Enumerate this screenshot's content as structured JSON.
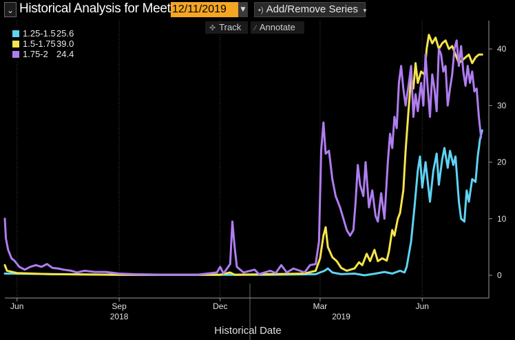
{
  "header": {
    "title": "Historical Analysis for Meeting",
    "date_value": "12/11/2019",
    "add_remove_label": "Add/Remove Series"
  },
  "toolbar": {
    "track_label": "Track",
    "annotate_label": "Annotate"
  },
  "legend": [
    {
      "name": "1.25-1.5",
      "value": "25.6",
      "color": "#5fd3f3"
    },
    {
      "name": "1.5-1.75",
      "value": "39.0",
      "color": "#f7e54a"
    },
    {
      "name": "1.75-2",
      "value": "24.4",
      "color": "#b07df0"
    }
  ],
  "chart_data": {
    "type": "line",
    "xlabel": "Historical Date",
    "ylabel": "",
    "x_range": [
      "2018-05-21",
      "2019-07-31"
    ],
    "ylim": [
      0,
      45
    ],
    "yticks": [
      0,
      10,
      20,
      30,
      40
    ],
    "x_ticks": [
      {
        "date": "2018-06-01",
        "label": "Jun"
      },
      {
        "date": "2018-09-01",
        "label": "Sep"
      },
      {
        "date": "2018-12-01",
        "label": "Dec"
      },
      {
        "date": "2019-03-01",
        "label": "Mar"
      },
      {
        "date": "2019-06-01",
        "label": "Jun"
      }
    ],
    "year_labels": [
      {
        "date": "2018-09-01",
        "label": "2018"
      },
      {
        "date": "2019-03-20",
        "label": "2019"
      }
    ],
    "year_boundary": "2019-01-01",
    "grid": {
      "vertical": true,
      "horizontal": false
    },
    "series": [
      {
        "name": "1.25-1.5",
        "color": "#5fd3f3",
        "points": [
          [
            "2018-05-21",
            0.3
          ],
          [
            "2018-09-01",
            0.1
          ],
          [
            "2018-12-01",
            0.1
          ],
          [
            "2019-01-15",
            0.1
          ],
          [
            "2019-02-25",
            0.2
          ],
          [
            "2019-03-05",
            0.8
          ],
          [
            "2019-03-08",
            1.2
          ],
          [
            "2019-03-12",
            0.5
          ],
          [
            "2019-03-20",
            0.2
          ],
          [
            "2019-04-01",
            0.3
          ],
          [
            "2019-04-10",
            0.0
          ],
          [
            "2019-04-20",
            0.3
          ],
          [
            "2019-04-28",
            0.6
          ],
          [
            "2019-05-05",
            0.3
          ],
          [
            "2019-05-12",
            0.8
          ],
          [
            "2019-05-16",
            0.5
          ],
          [
            "2019-05-18",
            1.5
          ],
          [
            "2019-05-22",
            6.0
          ],
          [
            "2019-05-25",
            12.0
          ],
          [
            "2019-05-28",
            18.5
          ],
          [
            "2019-05-30",
            21.0
          ],
          [
            "2019-06-01",
            15.5
          ],
          [
            "2019-06-04",
            20.0
          ],
          [
            "2019-06-06",
            16.5
          ],
          [
            "2019-06-08",
            13.0
          ],
          [
            "2019-06-11",
            18.5
          ],
          [
            "2019-06-14",
            21.5
          ],
          [
            "2019-06-16",
            16.0
          ],
          [
            "2019-06-19",
            20.5
          ],
          [
            "2019-06-21",
            22.5
          ],
          [
            "2019-06-24",
            19.0
          ],
          [
            "2019-06-26",
            22.0
          ],
          [
            "2019-06-29",
            19.5
          ],
          [
            "2019-07-01",
            21.0
          ],
          [
            "2019-07-04",
            13.0
          ],
          [
            "2019-07-06",
            10.0
          ],
          [
            "2019-07-09",
            9.5
          ],
          [
            "2019-07-11",
            15.0
          ],
          [
            "2019-07-13",
            13.0
          ],
          [
            "2019-07-16",
            17.0
          ],
          [
            "2019-07-19",
            16.5
          ],
          [
            "2019-07-21",
            21.0
          ],
          [
            "2019-07-23",
            24.0
          ],
          [
            "2019-07-25",
            25.6
          ]
        ]
      },
      {
        "name": "1.5-1.75",
        "color": "#f7e54a",
        "points": [
          [
            "2018-05-21",
            1.8
          ],
          [
            "2018-05-23",
            0.8
          ],
          [
            "2018-06-01",
            0.4
          ],
          [
            "2018-07-01",
            0.2
          ],
          [
            "2018-09-01",
            0.1
          ],
          [
            "2018-12-01",
            0.1
          ],
          [
            "2018-12-10",
            0.5
          ],
          [
            "2018-12-14",
            0.1
          ],
          [
            "2019-01-15",
            0.2
          ],
          [
            "2019-02-15",
            0.3
          ],
          [
            "2019-02-25",
            0.8
          ],
          [
            "2019-03-01",
            3.0
          ],
          [
            "2019-03-04",
            7.0
          ],
          [
            "2019-03-06",
            8.5
          ],
          [
            "2019-03-08",
            5.0
          ],
          [
            "2019-03-12",
            3.2
          ],
          [
            "2019-03-16",
            2.5
          ],
          [
            "2019-03-20",
            1.3
          ],
          [
            "2019-03-25",
            0.8
          ],
          [
            "2019-04-01",
            1.2
          ],
          [
            "2019-04-05",
            2.3
          ],
          [
            "2019-04-08",
            1.8
          ],
          [
            "2019-04-12",
            3.8
          ],
          [
            "2019-04-15",
            2.5
          ],
          [
            "2019-04-19",
            4.5
          ],
          [
            "2019-04-22",
            2.5
          ],
          [
            "2019-04-26",
            3.0
          ],
          [
            "2019-04-30",
            2.6
          ],
          [
            "2019-05-02",
            4.2
          ],
          [
            "2019-05-05",
            8.0
          ],
          [
            "2019-05-07",
            7.0
          ],
          [
            "2019-05-10",
            10.0
          ],
          [
            "2019-05-12",
            11.0
          ],
          [
            "2019-05-15",
            15.0
          ],
          [
            "2019-05-17",
            22.0
          ],
          [
            "2019-05-20",
            30.0
          ],
          [
            "2019-05-22",
            35.0
          ],
          [
            "2019-05-24",
            33.0
          ],
          [
            "2019-05-26",
            37.5
          ],
          [
            "2019-05-28",
            34.0
          ],
          [
            "2019-05-31",
            36.0
          ],
          [
            "2019-06-03",
            35.5
          ],
          [
            "2019-06-05",
            40.0
          ],
          [
            "2019-06-07",
            42.5
          ],
          [
            "2019-06-10",
            41.0
          ],
          [
            "2019-06-13",
            42.0
          ],
          [
            "2019-06-16",
            40.0
          ],
          [
            "2019-06-19",
            41.0
          ],
          [
            "2019-06-22",
            41.5
          ],
          [
            "2019-06-25",
            40.0
          ],
          [
            "2019-06-28",
            40.5
          ],
          [
            "2019-07-01",
            39.0
          ],
          [
            "2019-07-04",
            37.5
          ],
          [
            "2019-07-07",
            38.0
          ],
          [
            "2019-07-10",
            38.5
          ],
          [
            "2019-07-13",
            39.0
          ],
          [
            "2019-07-16",
            37.5
          ],
          [
            "2019-07-19",
            38.5
          ],
          [
            "2019-07-22",
            39.0
          ],
          [
            "2019-07-25",
            39.0
          ]
        ]
      },
      {
        "name": "1.75-2",
        "color": "#b07df0",
        "points": [
          [
            "2018-05-21",
            10.0
          ],
          [
            "2018-05-22",
            6.5
          ],
          [
            "2018-05-24",
            4.5
          ],
          [
            "2018-05-27",
            3.0
          ],
          [
            "2018-05-30",
            2.5
          ],
          [
            "2018-06-03",
            1.5
          ],
          [
            "2018-06-08",
            1.0
          ],
          [
            "2018-06-13",
            1.5
          ],
          [
            "2018-06-18",
            1.8
          ],
          [
            "2018-06-23",
            1.5
          ],
          [
            "2018-06-28",
            2.0
          ],
          [
            "2018-07-03",
            1.3
          ],
          [
            "2018-07-08",
            1.2
          ],
          [
            "2018-07-13",
            1.0
          ],
          [
            "2018-07-20",
            0.8
          ],
          [
            "2018-07-25",
            0.5
          ],
          [
            "2018-08-01",
            0.8
          ],
          [
            "2018-08-10",
            0.6
          ],
          [
            "2018-08-20",
            0.6
          ],
          [
            "2018-09-01",
            0.3
          ],
          [
            "2018-09-15",
            0.2
          ],
          [
            "2018-10-15",
            0.1
          ],
          [
            "2018-11-10",
            0.1
          ],
          [
            "2018-11-28",
            0.5
          ],
          [
            "2018-12-01",
            1.5
          ],
          [
            "2018-12-04",
            0.3
          ],
          [
            "2018-12-10",
            2.0
          ],
          [
            "2018-12-12",
            9.5
          ],
          [
            "2018-12-14",
            5.0
          ],
          [
            "2018-12-16",
            1.5
          ],
          [
            "2018-12-22",
            0.5
          ],
          [
            "2019-01-01",
            1.0
          ],
          [
            "2019-01-05",
            0.2
          ],
          [
            "2019-01-15",
            0.8
          ],
          [
            "2019-01-20",
            0.4
          ],
          [
            "2019-01-25",
            1.8
          ],
          [
            "2019-01-30",
            0.5
          ],
          [
            "2019-02-05",
            1.2
          ],
          [
            "2019-02-15",
            0.5
          ],
          [
            "2019-02-20",
            1.8
          ],
          [
            "2019-02-25",
            2.0
          ],
          [
            "2019-02-28",
            6.0
          ],
          [
            "2019-03-02",
            22.0
          ],
          [
            "2019-03-04",
            27.0
          ],
          [
            "2019-03-06",
            21.5
          ],
          [
            "2019-03-09",
            22.0
          ],
          [
            "2019-03-12",
            17.0
          ],
          [
            "2019-03-15",
            14.0
          ],
          [
            "2019-03-19",
            12.0
          ],
          [
            "2019-03-22",
            10.0
          ],
          [
            "2019-03-25",
            8.0
          ],
          [
            "2019-03-28",
            7.0
          ],
          [
            "2019-03-31",
            8.0
          ],
          [
            "2019-04-02",
            13.0
          ],
          [
            "2019-04-04",
            19.5
          ],
          [
            "2019-04-06",
            16.0
          ],
          [
            "2019-04-09",
            14.0
          ],
          [
            "2019-04-11",
            20.0
          ],
          [
            "2019-04-14",
            12.0
          ],
          [
            "2019-04-17",
            15.0
          ],
          [
            "2019-04-20",
            10.5
          ],
          [
            "2019-04-22",
            9.5
          ],
          [
            "2019-04-25",
            14.5
          ],
          [
            "2019-04-28",
            10.0
          ],
          [
            "2019-05-01",
            20.0
          ],
          [
            "2019-05-03",
            25.0
          ],
          [
            "2019-05-05",
            22.5
          ],
          [
            "2019-05-07",
            28.0
          ],
          [
            "2019-05-09",
            26.0
          ],
          [
            "2019-05-11",
            34.0
          ],
          [
            "2019-05-13",
            37.0
          ],
          [
            "2019-05-15",
            33.0
          ],
          [
            "2019-05-17",
            30.0
          ],
          [
            "2019-05-20",
            34.0
          ],
          [
            "2019-05-22",
            37.0
          ],
          [
            "2019-05-24",
            28.0
          ],
          [
            "2019-05-26",
            32.0
          ],
          [
            "2019-05-28",
            29.0
          ],
          [
            "2019-05-31",
            34.0
          ],
          [
            "2019-06-02",
            30.0
          ],
          [
            "2019-06-04",
            39.0
          ],
          [
            "2019-06-06",
            33.0
          ],
          [
            "2019-06-08",
            28.0
          ],
          [
            "2019-06-10",
            35.5
          ],
          [
            "2019-06-12",
            33.0
          ],
          [
            "2019-06-14",
            29.0
          ],
          [
            "2019-06-16",
            40.0
          ],
          [
            "2019-06-18",
            39.0
          ],
          [
            "2019-06-20",
            36.0
          ],
          [
            "2019-06-22",
            37.0
          ],
          [
            "2019-06-24",
            30.0
          ],
          [
            "2019-06-26",
            33.0
          ],
          [
            "2019-06-28",
            35.5
          ],
          [
            "2019-06-30",
            40.0
          ],
          [
            "2019-07-02",
            41.5
          ],
          [
            "2019-07-04",
            37.0
          ],
          [
            "2019-07-06",
            40.5
          ],
          [
            "2019-07-08",
            36.0
          ],
          [
            "2019-07-10",
            33.5
          ],
          [
            "2019-07-12",
            37.0
          ],
          [
            "2019-07-14",
            34.0
          ],
          [
            "2019-07-16",
            36.0
          ],
          [
            "2019-07-18",
            32.5
          ],
          [
            "2019-07-20",
            33.0
          ],
          [
            "2019-07-22",
            28.0
          ],
          [
            "2019-07-24",
            24.4
          ]
        ]
      }
    ]
  }
}
